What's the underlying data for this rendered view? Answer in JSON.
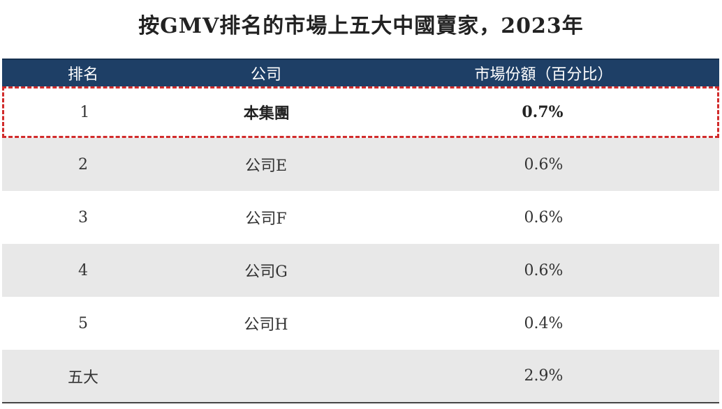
{
  "chart_data": {
    "type": "table",
    "title": "按GMV排名的市場上五大中國賣家，2023年",
    "columns": [
      "排名",
      "公司",
      "市場份額（百分比）"
    ],
    "rows": [
      {
        "rank": "1",
        "company": "本集團",
        "share": "0.7%",
        "highlighted": true
      },
      {
        "rank": "2",
        "company": "公司E",
        "share": "0.6%"
      },
      {
        "rank": "3",
        "company": "公司F",
        "share": "0.6%"
      },
      {
        "rank": "4",
        "company": "公司G",
        "share": "0.6%"
      },
      {
        "rank": "5",
        "company": "公司H",
        "share": "0.4%"
      },
      {
        "rank": "五大",
        "company": "",
        "share": "2.9%"
      }
    ],
    "values": [
      0.7,
      0.6,
      0.6,
      0.6,
      0.4,
      2.9
    ]
  },
  "colors": {
    "header_bg": "#1e3f66",
    "shaded_row": "#e8e8e8",
    "highlight_border": "#d12b2b"
  }
}
